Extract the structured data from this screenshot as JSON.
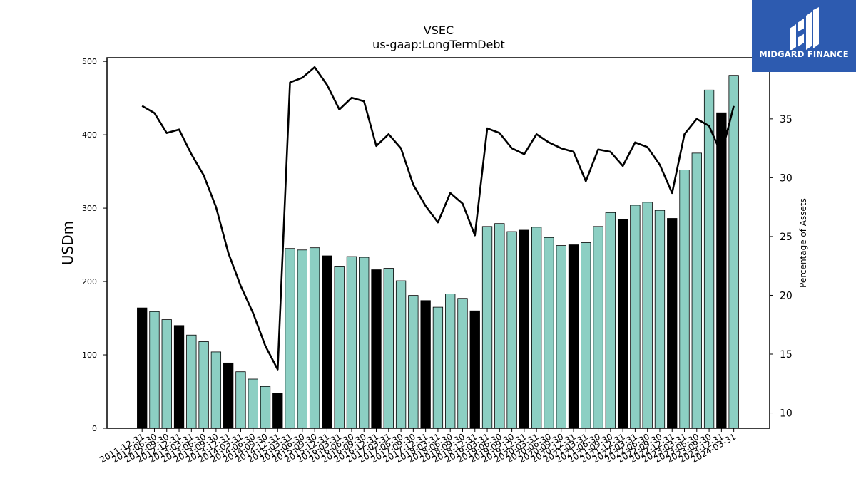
{
  "brand": {
    "name": "MIDGARD FINANCE",
    "icon": "midgard-logo-icon",
    "background": "#2d5bb0"
  },
  "chart_data": {
    "type": "bar",
    "title": "VSEC",
    "subtitle": "us-gaap:LongTermDebt",
    "ylabel": "USDm",
    "y2label": "Percentage of Assets",
    "ylim": [
      0,
      505
    ],
    "y2lim": [
      8.7,
      40.2
    ],
    "yticks": [
      0,
      100,
      200,
      300,
      400,
      500
    ],
    "y2ticks": [
      10,
      15,
      20,
      25,
      30,
      35
    ],
    "grid": false,
    "legend": "none",
    "colors": {
      "bar": "#8ccfc3",
      "bar_highlight": "#000000",
      "line": "#000000"
    },
    "categories": [
      "2011-12-31",
      "2012-06-30",
      "2012-09-30",
      "2012-12-31",
      "2013-03-31",
      "2013-06-30",
      "2013-09-30",
      "2013-12-31",
      "2014-03-31",
      "2014-06-30",
      "2014-09-30",
      "2014-12-31",
      "2015-03-31",
      "2015-06-30",
      "2015-09-30",
      "2015-12-31",
      "2016-03-31",
      "2016-06-30",
      "2016-09-30",
      "2016-12-31",
      "2017-03-31",
      "2017-06-30",
      "2017-09-30",
      "2017-12-31",
      "2018-03-31",
      "2018-06-30",
      "2018-09-30",
      "2018-12-31",
      "2019-03-31",
      "2019-06-30",
      "2019-09-30",
      "2019-12-31",
      "2020-03-31",
      "2020-06-30",
      "2020-09-30",
      "2020-12-31",
      "2021-03-31",
      "2021-06-30",
      "2021-09-30",
      "2021-12-31",
      "2022-03-31",
      "2022-06-30",
      "2022-09-30",
      "2022-12-31",
      "2023-03-31",
      "2023-06-30",
      "2023-09-30",
      "2023-12-31",
      "2024-03-31"
    ],
    "series": [
      {
        "axis": "left",
        "values": [
          164,
          159,
          148,
          140,
          127,
          118,
          104,
          89,
          77,
          67,
          57,
          48,
          245,
          243,
          246,
          235,
          221,
          234,
          233,
          216,
          218,
          201,
          181,
          174,
          165,
          183,
          177,
          160,
          275,
          279,
          268,
          270,
          274,
          260,
          249,
          250,
          253,
          275,
          294,
          285,
          304,
          308,
          297,
          286,
          352,
          375,
          461,
          430,
          481
        ],
        "highlight": [
          true,
          false,
          false,
          true,
          false,
          false,
          false,
          true,
          false,
          false,
          false,
          true,
          false,
          false,
          false,
          true,
          false,
          false,
          false,
          true,
          false,
          false,
          false,
          true,
          false,
          false,
          false,
          true,
          false,
          false,
          false,
          true,
          false,
          false,
          false,
          true,
          false,
          false,
          false,
          true,
          false,
          false,
          false,
          true,
          false,
          false,
          false,
          true,
          false
        ]
      },
      {
        "axis": "right",
        "type": "line",
        "values": [
          36.1,
          35.5,
          33.8,
          34.1,
          32.0,
          30.2,
          27.5,
          23.6,
          20.8,
          18.5,
          15.7,
          13.7,
          38.1,
          38.5,
          39.4,
          37.9,
          35.8,
          36.8,
          36.5,
          32.7,
          33.7,
          32.5,
          29.4,
          27.6,
          26.2,
          28.7,
          27.8,
          25.1,
          34.2,
          33.8,
          32.5,
          32.0,
          33.7,
          33.0,
          32.5,
          32.2,
          29.7,
          32.4,
          32.2,
          31.0,
          33.0,
          32.6,
          31.1,
          28.7,
          33.7,
          35.0,
          34.4,
          32.0,
          36.1
        ]
      }
    ]
  }
}
